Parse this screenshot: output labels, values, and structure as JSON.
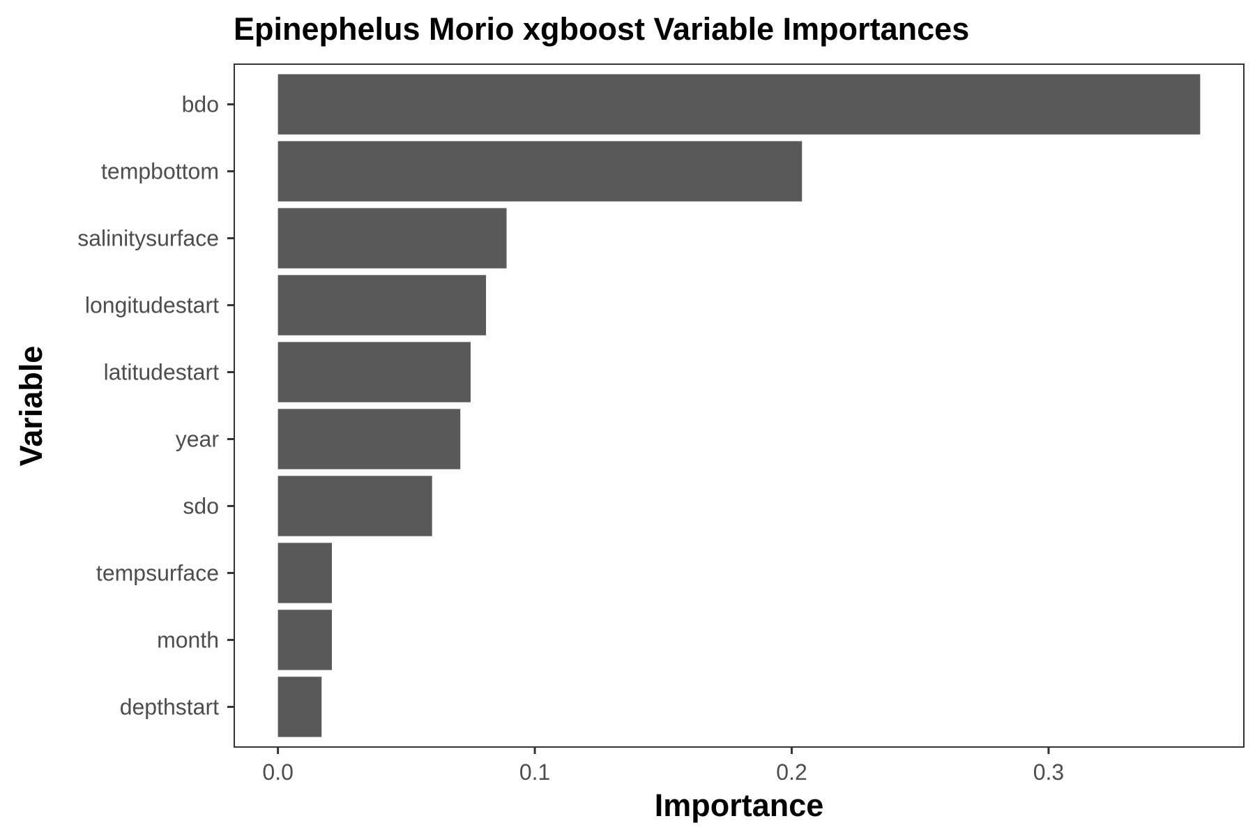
{
  "chart_data": {
    "type": "bar",
    "orientation": "horizontal",
    "title": "Epinephelus Morio xgboost Variable Importances",
    "xlabel": "Importance",
    "ylabel": "Variable",
    "categories": [
      "bdo",
      "tempbottom",
      "salinitysurface",
      "longitudestart",
      "latitudestart",
      "year",
      "sdo",
      "tempsurface",
      "month",
      "depthstart"
    ],
    "values": [
      0.359,
      0.204,
      0.089,
      0.081,
      0.075,
      0.071,
      0.06,
      0.021,
      0.021,
      0.017
    ],
    "xlim": [
      -0.017,
      0.376
    ],
    "xticks": [
      0.0,
      0.1,
      0.2,
      0.3
    ],
    "xtick_labels": [
      "0.0",
      "0.1",
      "0.2",
      "0.3"
    ],
    "bar_color": "#595959",
    "grid": false,
    "legend": "none"
  }
}
